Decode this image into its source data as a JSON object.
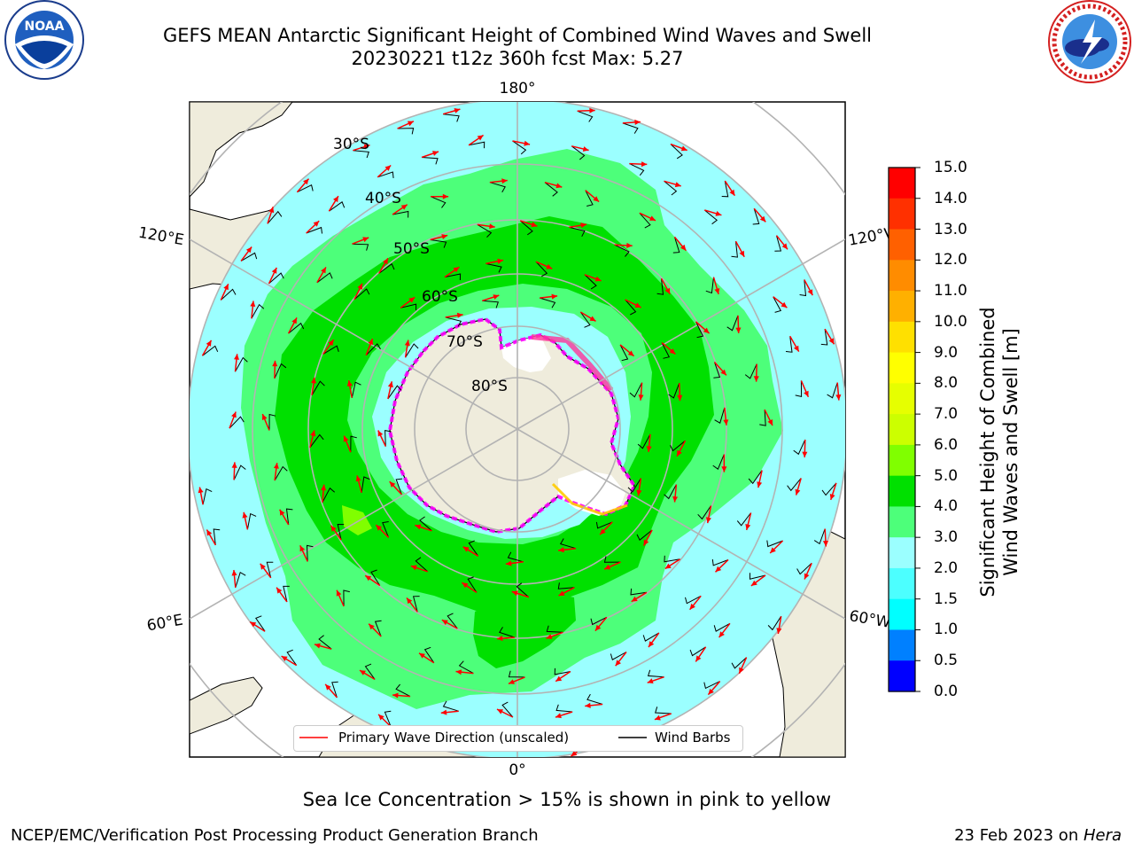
{
  "title": {
    "line1": "GEFS MEAN Antarctic Significant Height of Combined Wind Waves and Swell",
    "line2": "20230221 t12z 360h fcst   Max: 5.27"
  },
  "logos": {
    "left": {
      "text": "NOAA",
      "ring_text": "NATIONAL OCEANIC AND ATMOSPHERIC ADMINISTRATION · U.S. DEPARTMENT OF COMMERCE",
      "icon": "noaa-logo"
    },
    "right": {
      "ring_text": "NATIONAL WEATHER SERVICE",
      "icon": "nws-logo"
    }
  },
  "map": {
    "projection": "south-polar-stereographic",
    "longitude_labels": {
      "top": "180°",
      "bottom": "0°",
      "upper_left": "120°E",
      "upper_right": "120°W",
      "lower_left": "60°E",
      "lower_right": "60°W"
    },
    "latitude_labels": [
      "30°S",
      "40°S",
      "50°S",
      "60°S",
      "70°S",
      "80°S"
    ],
    "colors": {
      "land": "#efecdc",
      "ocean_low": "#9bffff",
      "ocean_mid": "#4dff7a",
      "ocean_high": "#00e000",
      "ice_edge": "#ff00ff",
      "arrow": "#ff0000",
      "barb": "#000000",
      "grid": "#b3b3b3"
    }
  },
  "legend": {
    "primary_wave": "Primary Wave Direction (unscaled)",
    "wind_barbs": "Wind Barbs"
  },
  "colorbar": {
    "label": "Significant Height of Combined\nWind Waves and Swell [m]",
    "ticks": [
      "15.0",
      "14.0",
      "13.0",
      "12.0",
      "11.0",
      "10.0",
      "9.0",
      "8.0",
      "7.0",
      "6.0",
      "5.0",
      "4.0",
      "3.0",
      "2.0",
      "1.5",
      "1.0",
      "0.5",
      "0.0"
    ],
    "colors": [
      "#ff0000",
      "#ff3000",
      "#ff6000",
      "#ff8c00",
      "#ffb000",
      "#ffe000",
      "#ffff00",
      "#e6ff00",
      "#ccff00",
      "#80ff00",
      "#00e000",
      "#4dff7a",
      "#9bffff",
      "#4cffff",
      "#00ffff",
      "#0080ff",
      "#0000ff"
    ]
  },
  "note": "Sea Ice Concentration > 15% is shown in pink to yellow",
  "footer": {
    "left": "NCEP/EMC/Verification Post Processing Product Generation Branch",
    "right_date": "23 Feb 2023 on ",
    "right_host": "Hera"
  }
}
